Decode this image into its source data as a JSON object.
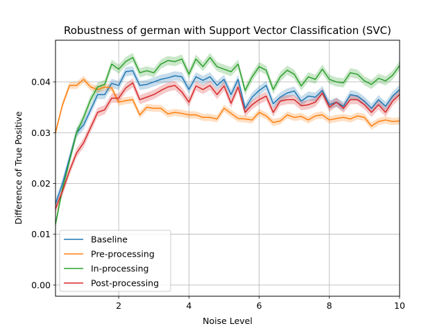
{
  "chart_data": {
    "type": "line",
    "title": "Robustness of german with Support Vector Classification (SVC)",
    "xlabel": "Noise Level",
    "ylabel": "Difference of True Positive",
    "xlim": [
      0.2,
      10
    ],
    "ylim": [
      -0.0022,
      0.0482
    ],
    "xticks": [
      2,
      4,
      6,
      8,
      10
    ],
    "yticks": [
      0.0,
      0.01,
      0.02,
      0.03,
      0.04
    ],
    "xtick_labels": [
      "2",
      "4",
      "6",
      "8",
      "10"
    ],
    "ytick_labels": [
      "0.00",
      "0.01",
      "0.02",
      "0.03",
      "0.04"
    ],
    "grid": true,
    "legend_position": "lower-left",
    "x": [
      0.2,
      0.4,
      0.6,
      0.8,
      1.0,
      1.2,
      1.4,
      1.6,
      1.8,
      2.0,
      2.2,
      2.4,
      2.6,
      2.8,
      3.0,
      3.2,
      3.4,
      3.6,
      3.8,
      4.0,
      4.2,
      4.4,
      4.6,
      4.8,
      5.0,
      5.2,
      5.4,
      5.6,
      5.8,
      6.0,
      6.2,
      6.4,
      6.6,
      6.8,
      7.0,
      7.2,
      7.4,
      7.6,
      7.8,
      8.0,
      8.2,
      8.4,
      8.6,
      8.8,
      9.0,
      9.2,
      9.4,
      9.6,
      9.8,
      10.0
    ],
    "series": [
      {
        "name": "Baseline",
        "color": "#1f77b4",
        "band": 0.0009,
        "values": [
          0.016,
          0.02,
          0.025,
          0.03,
          0.0315,
          0.0345,
          0.0375,
          0.0375,
          0.0397,
          0.0393,
          0.042,
          0.0422,
          0.0393,
          0.0395,
          0.04,
          0.0405,
          0.0408,
          0.0412,
          0.041,
          0.0385,
          0.041,
          0.0403,
          0.041,
          0.0393,
          0.0405,
          0.0375,
          0.0405,
          0.0348,
          0.037,
          0.0383,
          0.0393,
          0.0357,
          0.037,
          0.0378,
          0.0382,
          0.0362,
          0.0372,
          0.037,
          0.0383,
          0.0355,
          0.036,
          0.0352,
          0.0375,
          0.0372,
          0.0362,
          0.0348,
          0.0365,
          0.0352,
          0.0372,
          0.0385
        ]
      },
      {
        "name": "Pre-processing",
        "color": "#ff7f0e",
        "band": 0.0007,
        "values": [
          0.03,
          0.0355,
          0.0393,
          0.0393,
          0.0405,
          0.039,
          0.0385,
          0.039,
          0.0388,
          0.036,
          0.0363,
          0.0365,
          0.0335,
          0.035,
          0.0348,
          0.0348,
          0.0337,
          0.034,
          0.0338,
          0.0335,
          0.0335,
          0.033,
          0.033,
          0.0327,
          0.0348,
          0.0338,
          0.0328,
          0.0327,
          0.0325,
          0.034,
          0.0333,
          0.032,
          0.0323,
          0.0335,
          0.033,
          0.0332,
          0.0325,
          0.0333,
          0.0335,
          0.0325,
          0.0328,
          0.033,
          0.0327,
          0.0333,
          0.033,
          0.0313,
          0.0322,
          0.0325,
          0.0322,
          0.0323
        ]
      },
      {
        "name": "In-processing",
        "color": "#2ca02c",
        "band": 0.0009,
        "values": [
          0.012,
          0.019,
          0.0245,
          0.03,
          0.033,
          0.0365,
          0.039,
          0.0395,
          0.0435,
          0.0425,
          0.044,
          0.0448,
          0.0418,
          0.0422,
          0.0418,
          0.0435,
          0.0442,
          0.044,
          0.0445,
          0.0415,
          0.0445,
          0.043,
          0.0448,
          0.043,
          0.0425,
          0.042,
          0.0435,
          0.0383,
          0.041,
          0.043,
          0.0423,
          0.0385,
          0.041,
          0.0423,
          0.0415,
          0.0392,
          0.041,
          0.0405,
          0.0425,
          0.0405,
          0.04,
          0.0398,
          0.0418,
          0.0415,
          0.0402,
          0.0395,
          0.0407,
          0.0402,
          0.0413,
          0.0432
        ]
      },
      {
        "name": "Post-processing",
        "color": "#d62728",
        "band": 0.0009,
        "values": [
          0.015,
          0.0185,
          0.0225,
          0.026,
          0.028,
          0.031,
          0.034,
          0.0345,
          0.0368,
          0.0368,
          0.0388,
          0.0398,
          0.0365,
          0.037,
          0.0375,
          0.0383,
          0.039,
          0.0393,
          0.038,
          0.036,
          0.0392,
          0.0385,
          0.0393,
          0.0375,
          0.0392,
          0.0358,
          0.039,
          0.034,
          0.0355,
          0.0365,
          0.0372,
          0.034,
          0.0362,
          0.0365,
          0.0365,
          0.0353,
          0.0355,
          0.036,
          0.0378,
          0.035,
          0.036,
          0.0348,
          0.0365,
          0.0365,
          0.0355,
          0.034,
          0.0355,
          0.034,
          0.0362,
          0.0375
        ]
      }
    ]
  }
}
